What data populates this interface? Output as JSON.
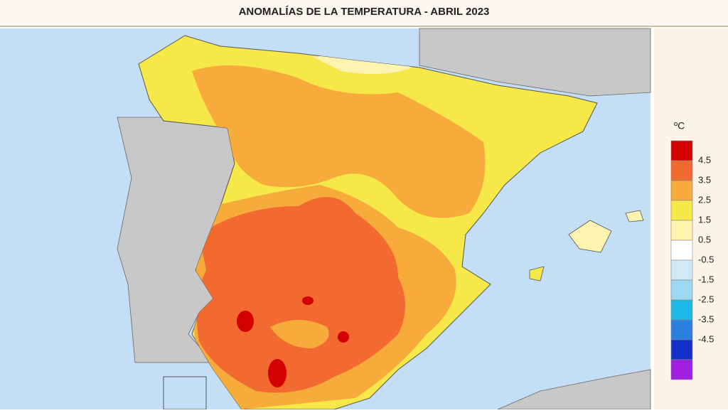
{
  "header": {
    "title": "ANOMALÍAS DE LA TEMPERATURA - ABRIL 2023"
  },
  "legend": {
    "unit": "ºC",
    "labels": [
      "4.5",
      "3.5",
      "2.5",
      "1.5",
      "0.5",
      "-0.5",
      "-1.5",
      "-2.5",
      "-3.5",
      "-4.5"
    ],
    "colors": [
      "#d40000",
      "#f26a30",
      "#f7ab3a",
      "#f7e84a",
      "#fcf4b0",
      "#ffffff",
      "#cfe9f7",
      "#9dd8f2",
      "#1fb8e8",
      "#2a7fe0",
      "#1230c8",
      "#a020e0"
    ]
  }
}
